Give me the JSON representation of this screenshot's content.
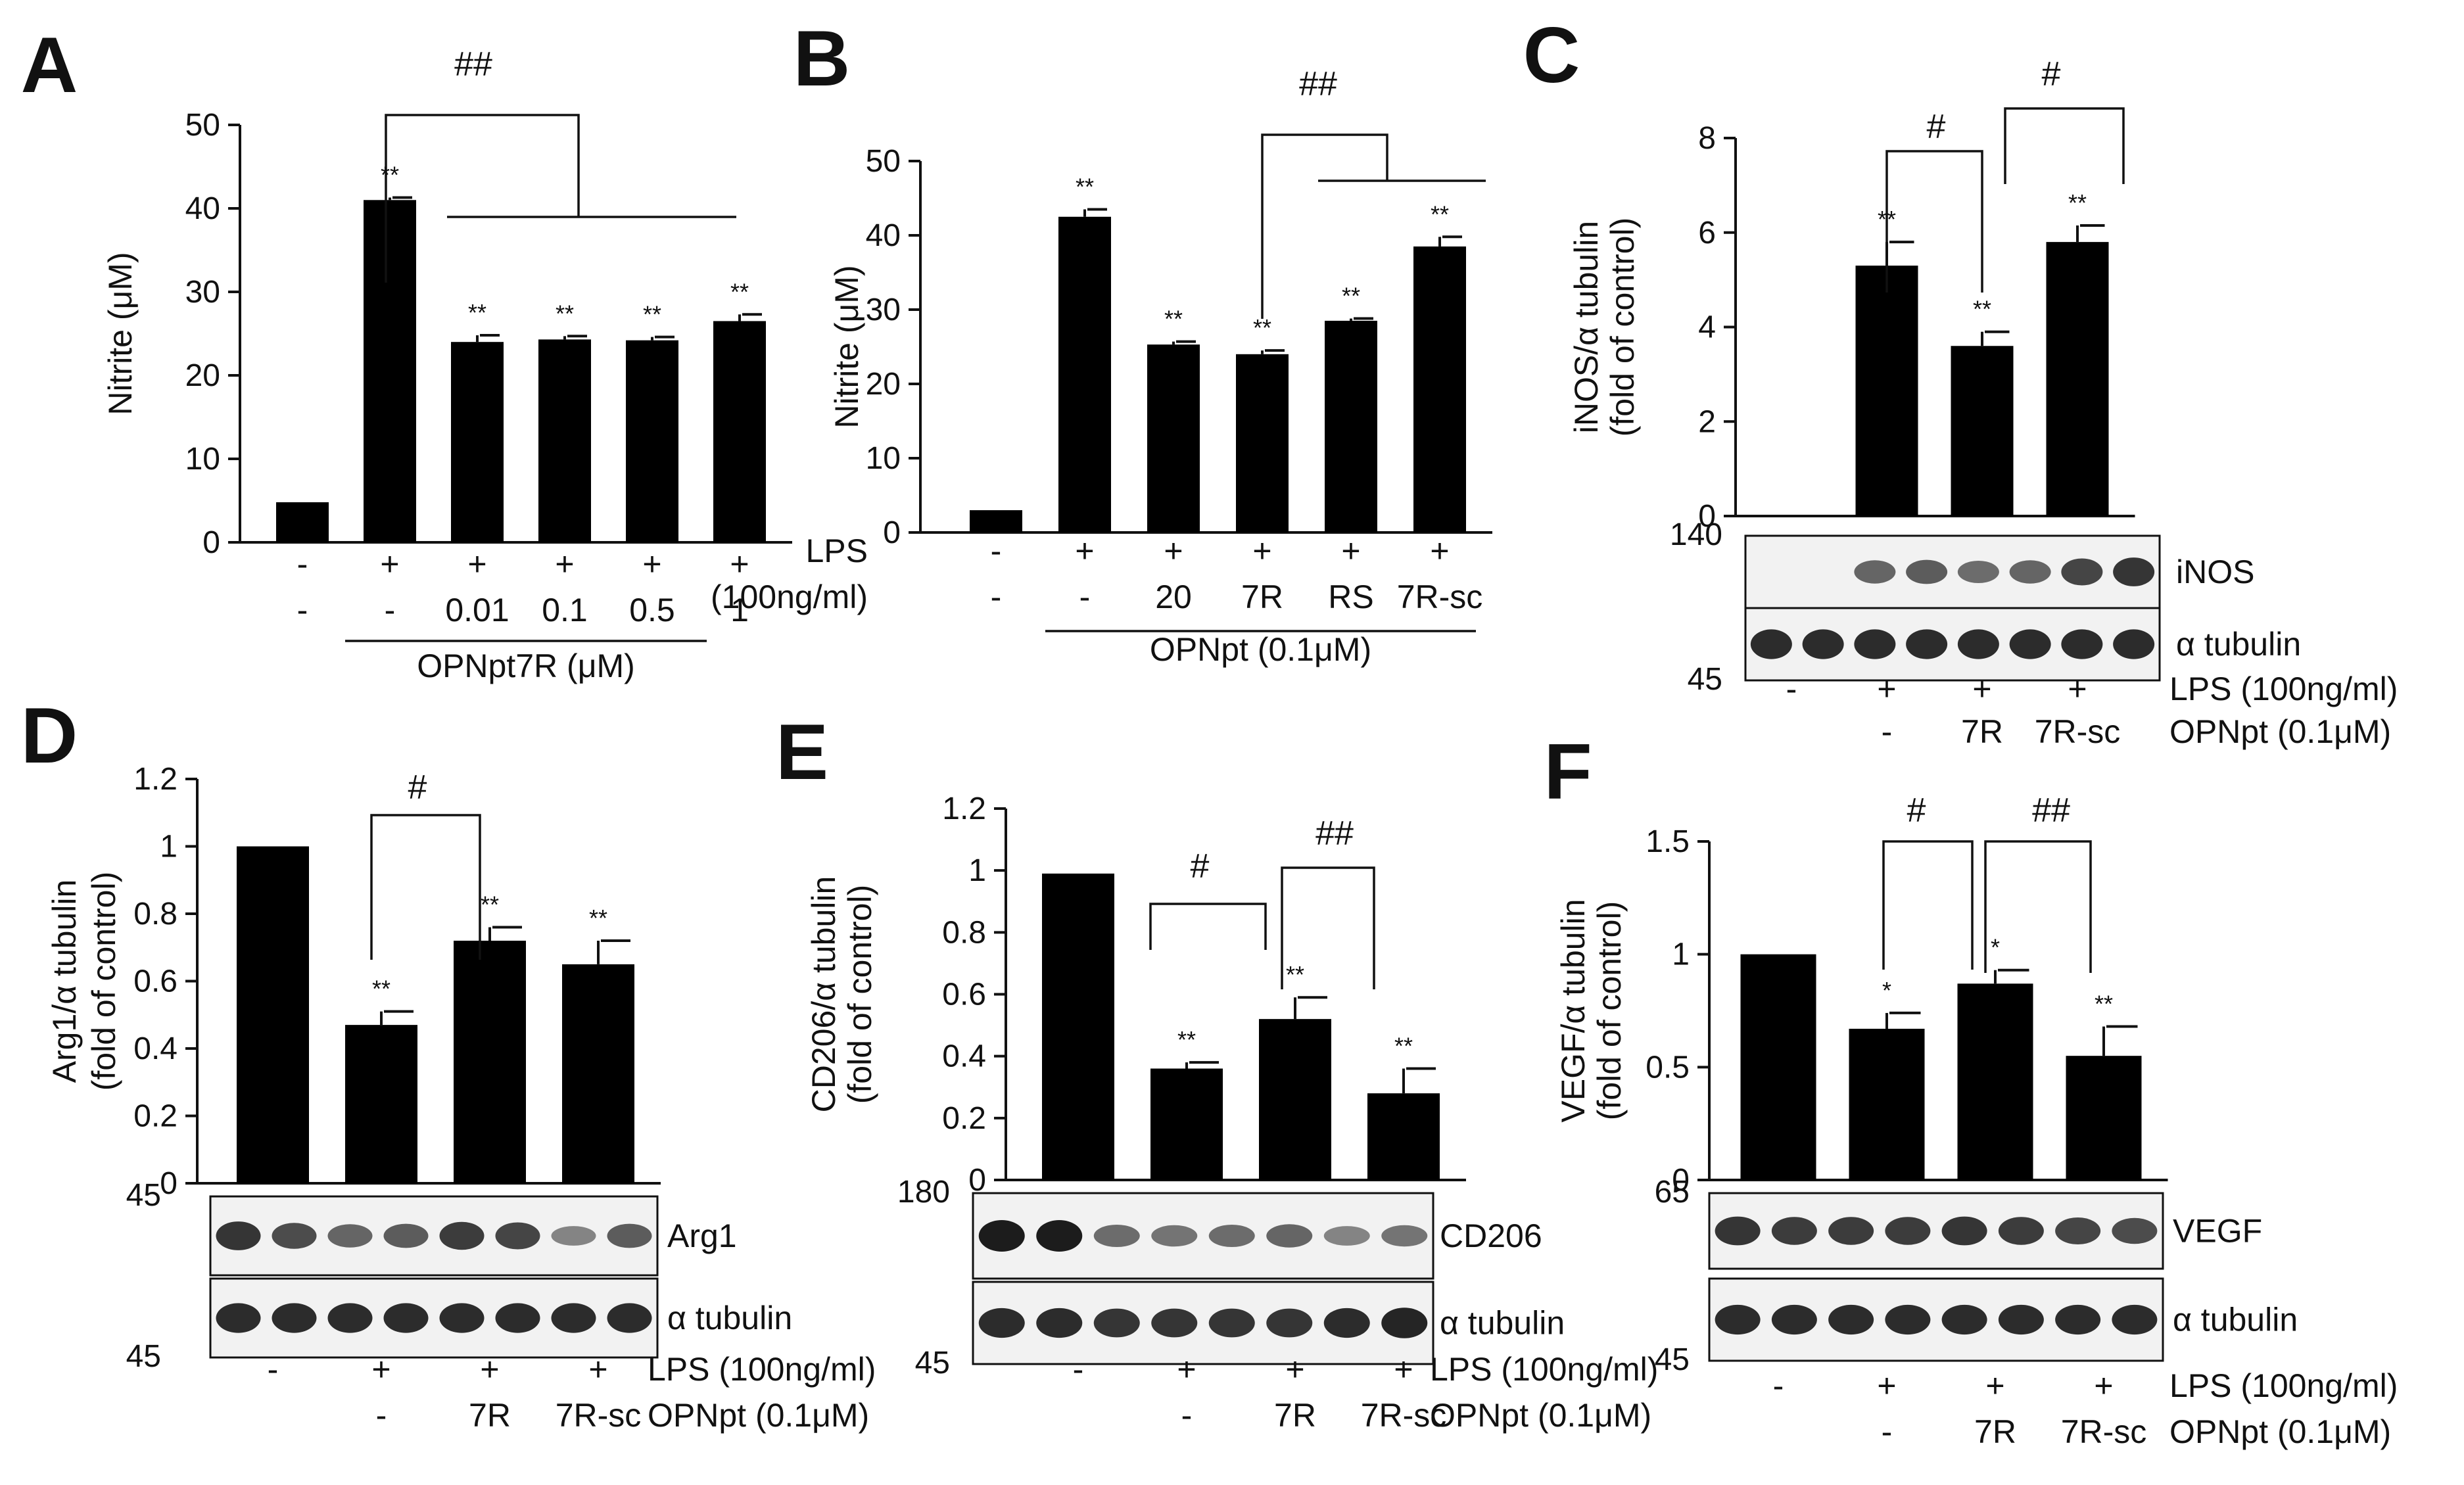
{
  "colors": {
    "bar": "#000000",
    "axis": "#111111",
    "background": "#ffffff",
    "blot_bg": "#f2f2f2",
    "band": "#1c1c1c"
  },
  "chart_data": [
    {
      "panel": "A",
      "type": "bar",
      "ylabel": "Nitrite (μM)",
      "ylim": [
        0,
        50
      ],
      "yticks": [
        "0",
        "10",
        "20",
        "30",
        "40",
        "50"
      ],
      "values": [
        4.8,
        41,
        24,
        24.3,
        24.2,
        26.5
      ],
      "errors": [
        0,
        0.3,
        0.8,
        0.4,
        0.4,
        0.8
      ],
      "sig": [
        "",
        "**",
        "**",
        "**",
        "**",
        "**"
      ],
      "rows": [
        {
          "label": "",
          "cells": [
            "-",
            "+",
            "+",
            "+",
            "+",
            "+"
          ]
        },
        {
          "label": "",
          "cells": [
            "-",
            "-",
            "0.01",
            "0.1",
            "0.5",
            "1"
          ]
        }
      ],
      "group_label": "OPNpt7R (μM)",
      "brackets": [
        {
          "text": "##"
        }
      ]
    },
    {
      "panel": "B",
      "type": "bar",
      "ylabel": "Nitrite (μM)",
      "ylim": [
        0,
        50
      ],
      "yticks": [
        "0",
        "10",
        "20",
        "30",
        "40",
        "50"
      ],
      "values": [
        3,
        42.5,
        25.3,
        24,
        28.5,
        38.5
      ],
      "errors": [
        0,
        1,
        0.4,
        0.5,
        0.3,
        1.3
      ],
      "sig": [
        "",
        "**",
        "**",
        "**",
        "**",
        "**"
      ],
      "rows": [
        {
          "label": "LPS",
          "cells": [
            "-",
            "+",
            "+",
            "+",
            "+",
            "+"
          ]
        },
        {
          "label": "(100ng/ml)",
          "cells": [
            "-",
            "-",
            "20",
            "7R",
            "RS",
            "7R-sc"
          ]
        }
      ],
      "group_label": "OPNpt (0.1μM)",
      "brackets": [
        {
          "text": "##"
        }
      ]
    },
    {
      "panel": "C",
      "type": "bar",
      "ylabel": "iNOS/α tubulin",
      "ylabel2": "(fold  of control)",
      "ylim": [
        0,
        8
      ],
      "yticks": [
        "0",
        "2",
        "4",
        "6",
        "8"
      ],
      "values": [
        0,
        5.3,
        3.6,
        5.8
      ],
      "errors": [
        0,
        0.5,
        0.3,
        0.35
      ],
      "sig": [
        "",
        "**",
        "**",
        "**"
      ],
      "rows": [
        {
          "label": "LPS (100ng/ml)",
          "cells": [
            "-",
            "+",
            "+",
            "+"
          ]
        },
        {
          "label": "OPNpt (0.1μM)",
          "cells": [
            "",
            "-",
            "7R",
            "7R-sc"
          ]
        }
      ],
      "brackets": [
        {
          "text": "#"
        },
        {
          "text": "#"
        }
      ],
      "blots": [
        {
          "name": "iNOS",
          "mw": "140",
          "intensity": [
            0,
            0,
            0.55,
            0.6,
            0.5,
            0.55,
            0.75,
            0.85
          ]
        },
        {
          "name": "α tubulin",
          "mw": "45",
          "intensity": [
            0.9,
            0.9,
            0.9,
            0.9,
            0.9,
            0.9,
            0.9,
            0.9
          ]
        }
      ]
    },
    {
      "panel": "D",
      "type": "bar",
      "ylabel": "Arg1/α tubulin",
      "ylabel2": "(fold  of control)",
      "ylim": [
        0,
        1.2
      ],
      "yticks": [
        "0",
        "0.2",
        "0.4",
        "0.6",
        "0.8",
        "1",
        "1.2"
      ],
      "values": [
        1,
        0.47,
        0.72,
        0.65
      ],
      "errors": [
        0,
        0.04,
        0.04,
        0.07
      ],
      "sig": [
        "",
        "**",
        "**",
        "**"
      ],
      "rows": [
        {
          "label": "LPS (100ng/ml)",
          "cells": [
            "-",
            "+",
            "+",
            "+"
          ]
        },
        {
          "label": "OPNpt (0.1μM)",
          "cells": [
            "",
            "-",
            "7R",
            "7R-sc"
          ]
        }
      ],
      "brackets": [
        {
          "text": "#"
        }
      ],
      "blots": [
        {
          "name": "Arg1",
          "mw": "45",
          "intensity": [
            0.85,
            0.7,
            0.55,
            0.6,
            0.8,
            0.75,
            0.35,
            0.6
          ]
        },
        {
          "name": "α tubulin",
          "mw": "45",
          "intensity": [
            0.9,
            0.9,
            0.9,
            0.9,
            0.9,
            0.9,
            0.9,
            0.9
          ]
        }
      ]
    },
    {
      "panel": "E",
      "type": "bar",
      "ylabel": "CD206/α tubulin",
      "ylabel2": "(fold  of control)",
      "ylim": [
        0,
        1.2
      ],
      "yticks": [
        "0",
        "0.2",
        "0.4",
        "0.6",
        "0.8",
        "1",
        "1.2"
      ],
      "values": [
        0.99,
        0.36,
        0.52,
        0.28
      ],
      "errors": [
        0,
        0.02,
        0.07,
        0.08
      ],
      "sig": [
        "",
        "**",
        "**",
        "**"
      ],
      "rows": [
        {
          "label": "LPS (100ng/ml)",
          "cells": [
            "-",
            "+",
            "+",
            "+"
          ]
        },
        {
          "label": "OPNpt (0.1μM)",
          "cells": [
            "",
            "-",
            "7R",
            "7R-sc"
          ]
        }
      ],
      "brackets": [
        {
          "text": "#"
        },
        {
          "text": "##"
        }
      ],
      "blots": [
        {
          "name": "CD206",
          "mw": "180",
          "intensity": [
            1,
            1,
            0.5,
            0.45,
            0.5,
            0.55,
            0.35,
            0.45
          ]
        },
        {
          "name": "α tubulin",
          "mw": "45",
          "intensity": [
            0.9,
            0.9,
            0.85,
            0.85,
            0.85,
            0.85,
            0.9,
            0.95
          ]
        }
      ]
    },
    {
      "panel": "F",
      "type": "bar",
      "ylabel": "VEGF/α tubulin",
      "ylabel2": "(fold  of control)",
      "ylim": [
        0,
        1.5
      ],
      "yticks": [
        "0",
        "0.5",
        "1",
        "1.5"
      ],
      "values": [
        1,
        0.67,
        0.87,
        0.55
      ],
      "errors": [
        0,
        0.07,
        0.06,
        0.13
      ],
      "sig": [
        "",
        "*",
        "*",
        "**"
      ],
      "rows": [
        {
          "label": "LPS (100ng/ml)",
          "cells": [
            "-",
            "+",
            "+",
            "+"
          ]
        },
        {
          "label": "OPNpt (0.1μM)",
          "cells": [
            "",
            "-",
            "7R",
            "7R-sc"
          ]
        }
      ],
      "brackets": [
        {
          "text": "#"
        },
        {
          "text": "##"
        }
      ],
      "blots": [
        {
          "name": "VEGF",
          "mw": "65",
          "intensity": [
            0.85,
            0.8,
            0.8,
            0.8,
            0.85,
            0.8,
            0.75,
            0.7
          ]
        },
        {
          "name": "α tubulin",
          "mw": "45",
          "intensity": [
            0.9,
            0.9,
            0.9,
            0.9,
            0.9,
            0.9,
            0.9,
            0.9
          ]
        }
      ]
    }
  ]
}
